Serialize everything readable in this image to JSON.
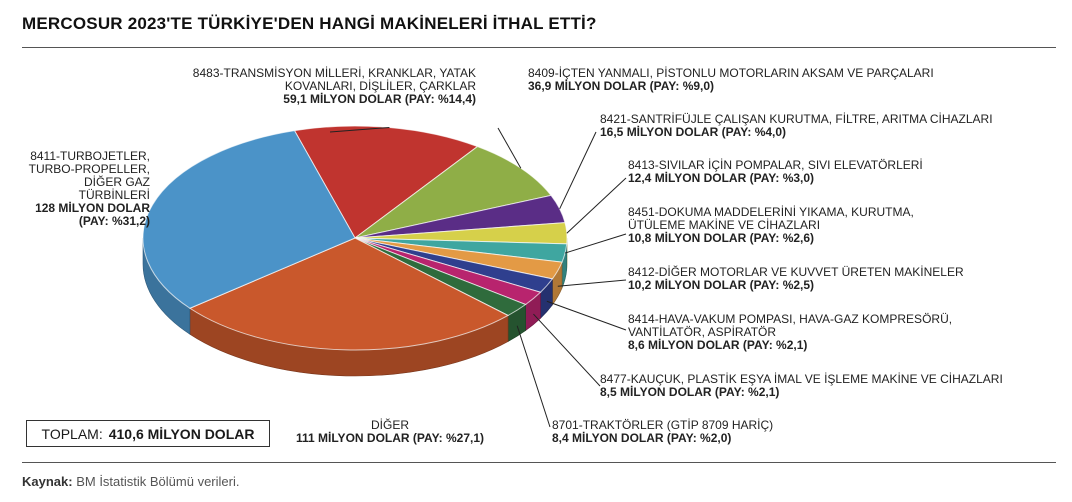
{
  "title": "MERCOSUR 2023'TE TÜRKİYE'DEN HANGİ MAKİNELERİ İTHAL ETTİ?",
  "total": {
    "label": "TOPLAM:",
    "value": "410,6 MİLYON DOLAR"
  },
  "source": {
    "label": "Kaynak:",
    "text": "BM İstatistik Bölümü verileri."
  },
  "chart_data": {
    "type": "pie",
    "unit": "MİLYON DOLAR",
    "total": 410.6,
    "slices": [
      {
        "name": "8483-TRANSMİSYON MİLLERİ, KRANKLAR, YATAK KOVANLARI, DİŞLİLER, ÇARKLAR",
        "value": 59.1,
        "share": 14.4,
        "value_label": "59,1 MİLYON DOLAR (PAY: %14,4)",
        "color": "#c0342f"
      },
      {
        "name": "8409-İÇTEN YANMALI, PİSTONLU MOTORLARIN AKSAM VE PARÇALARI",
        "value": 36.9,
        "share": 9.0,
        "value_label": "36,9 MİLYON DOLAR (PAY: %9,0)",
        "color": "#8fae47"
      },
      {
        "name": "8421-SANTRİFÜJLE ÇALIŞAN KURUTMA, FİLTRE, ARITMA CİHAZLARI",
        "value": 16.5,
        "share": 4.0,
        "value_label": "16,5 MİLYON DOLAR (PAY: %4,0)",
        "color": "#5a2d86"
      },
      {
        "name": "8413-SIVILAR İÇİN POMPALAR, SIVI ELEVATÖRLERİ",
        "value": 12.4,
        "share": 3.0,
        "value_label": "12,4 MİLYON DOLAR (PAY: %3,0)",
        "color": "#d6d04a"
      },
      {
        "name": "8451-DOKUMA MADDELERİNİ YIKAMA, KURUTMA, ÜTÜLEME MAKİNE VE CİHAZLARI",
        "value": 10.8,
        "share": 2.6,
        "value_label": "10,8 MİLYON DOLAR (PAY: %2,6)",
        "color": "#3fa6a0"
      },
      {
        "name": "8412-DİĞER MOTORLAR VE KUVVET ÜRETEN MAKİNELER",
        "value": 10.2,
        "share": 2.5,
        "value_label": "10,2 MİLYON DOLAR (PAY: %2,5)",
        "color": "#e39a45"
      },
      {
        "name": "8414-HAVA-VAKUM POMPASI, HAVA-GAZ KOMPRESÖRÜ, VANTİLATÖR, ASPİRATÖR",
        "value": 8.6,
        "share": 2.1,
        "value_label": "8,6 MİLYON DOLAR (PAY: %2,1)",
        "color": "#2f3f8e"
      },
      {
        "name": "8477-KAUÇUK, PLASTİK EŞYA İMAL VE İŞLEME MAKİNE VE CİHAZLARI",
        "value": 8.5,
        "share": 2.1,
        "value_label": "8,5 MİLYON DOLAR (PAY: %2,1)",
        "color": "#b8246e"
      },
      {
        "name": "8701-TRAKTÖRLER (GTİP 8709 HARİÇ)",
        "value": 8.4,
        "share": 2.0,
        "value_label": "8,4 MİLYON DOLAR (PAY: %2,0)",
        "color": "#2f6b3c"
      },
      {
        "name": "DİĞER",
        "value": 111,
        "share": 27.1,
        "value_label": "111 MİLYON DOLAR (PAY: %27,1)",
        "color": "#c9582c"
      },
      {
        "name": "8411-TURBOJETLER, TURBO-PROPELLER, DİĞER GAZ TÜRBİNLERİ",
        "value": 128,
        "share": 31.2,
        "value_label": "128 MİLYON DOLAR (PAY: %31,2)",
        "color": "#4b93c8"
      }
    ]
  }
}
